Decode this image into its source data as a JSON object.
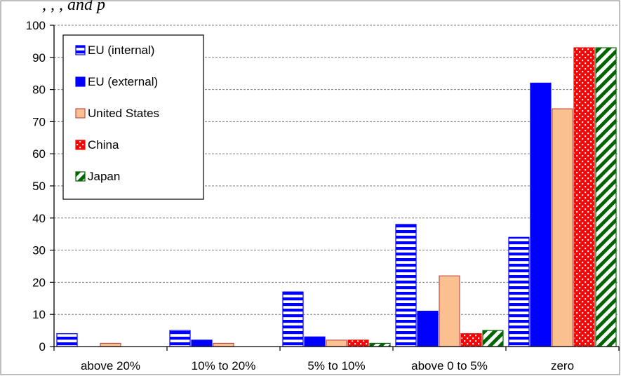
{
  "header_fragment": ", , , and p",
  "chart_data": {
    "type": "bar",
    "categories": [
      "above 20%",
      "10% to 20%",
      "5% to 10%",
      "above 0 to 5%",
      "zero"
    ],
    "series": [
      {
        "name": "EU (internal)",
        "values": [
          4,
          5,
          17,
          38,
          34
        ],
        "color": "#0000ff",
        "pattern": "horizontal-stripes"
      },
      {
        "name": "EU (external)",
        "values": [
          0,
          2,
          3,
          11,
          82
        ],
        "color": "#0000ff",
        "pattern": "solid"
      },
      {
        "name": "United States",
        "values": [
          1,
          1,
          2,
          22,
          74
        ],
        "color": "#fac090",
        "pattern": "solid-outlined"
      },
      {
        "name": "China",
        "values": [
          0,
          0,
          2,
          4,
          93
        ],
        "color": "#ff0000",
        "pattern": "dots"
      },
      {
        "name": "Japan",
        "values": [
          0,
          0,
          1,
          5,
          93
        ],
        "color": "#006400",
        "pattern": "diagonal-stripes"
      }
    ],
    "yticks": [
      "0",
      "10",
      "20",
      "30",
      "40",
      "50",
      "60",
      "70",
      "80",
      "90",
      "100"
    ],
    "ylim": [
      0,
      100
    ],
    "grid": true,
    "legend_position": "top-left",
    "title": "",
    "xlabel": "",
    "ylabel": ""
  }
}
